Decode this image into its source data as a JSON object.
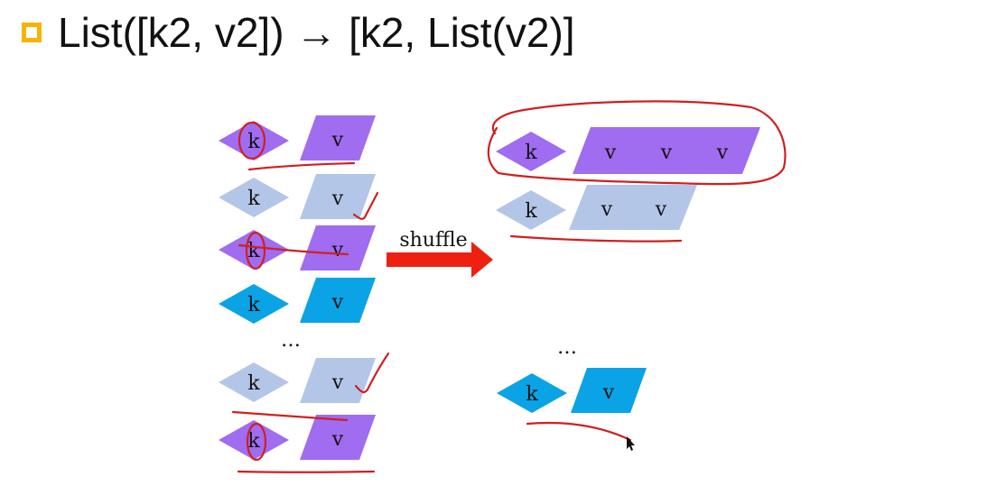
{
  "heading": {
    "bullet_color": "#f5b400",
    "text": "List([k2, v2]) → [k2, List(v2)]"
  },
  "colors": {
    "purple": "#a06cf0",
    "light": "#b3c6e8",
    "blue": "#0aa3e6",
    "arrow": "#ee2010",
    "ink": "#d02020"
  },
  "diagram": {
    "key_label": "k",
    "value_label": "v",
    "ellipsis": "…",
    "arrow_label": "shuffle",
    "input_pairs": [
      {
        "color": "purple"
      },
      {
        "color": "light"
      },
      {
        "color": "purple"
      },
      {
        "color": "blue"
      },
      {
        "color": "light"
      },
      {
        "color": "purple"
      }
    ],
    "output_groups": [
      {
        "color": "purple",
        "value_count": 3
      },
      {
        "color": "light",
        "value_count": 2
      },
      {
        "color": "blue",
        "value_count": 1
      }
    ]
  }
}
